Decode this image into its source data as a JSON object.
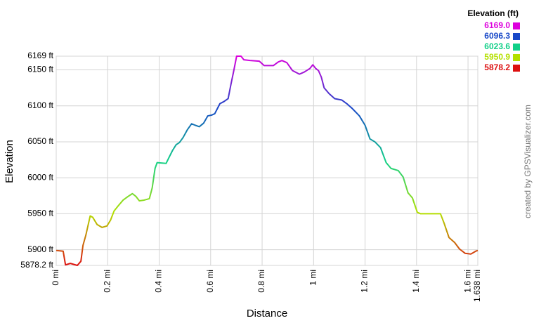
{
  "chart_data": {
    "type": "line",
    "y_label": "Elevation",
    "x_label": "Distance",
    "credit": "created by GPSVisualizer.com",
    "legend": {
      "title": "Elevation (ft)",
      "entries": [
        {
          "value": 6169.0,
          "label": "6169.0",
          "color": "#dd00dd"
        },
        {
          "value": 6096.3,
          "label": "6096.3",
          "color": "#1848c8"
        },
        {
          "value": 6023.6,
          "label": "6023.6",
          "color": "#10d088"
        },
        {
          "value": 5950.9,
          "label": "5950.9",
          "color": "#b4e000"
        },
        {
          "value": 5878.2,
          "label": "5878.2",
          "color": "#dd1010"
        }
      ]
    },
    "xlim": [
      0,
      1.638
    ],
    "ylim": [
      5878.2,
      6169
    ],
    "xticks": [
      {
        "value": 0,
        "label": "0 mi"
      },
      {
        "value": 0.2,
        "label": "0.2 mi"
      },
      {
        "value": 0.4,
        "label": "0.4 mi"
      },
      {
        "value": 0.6,
        "label": "0.6 mi"
      },
      {
        "value": 0.8,
        "label": "0.8 mi"
      },
      {
        "value": 1,
        "label": "1 mi"
      },
      {
        "value": 1.2,
        "label": "1.2 mi"
      },
      {
        "value": 1.4,
        "label": "1.4 mi"
      },
      {
        "value": 1.6,
        "label": "1.6 mi"
      },
      {
        "value": 1.638,
        "label": "1.638 mi"
      }
    ],
    "yticks": [
      {
        "value": 5878.2,
        "label": "5878.2 ft"
      },
      {
        "value": 5900,
        "label": "5900 ft"
      },
      {
        "value": 5950,
        "label": "5950 ft"
      },
      {
        "value": 6000,
        "label": "6000 ft"
      },
      {
        "value": 6050,
        "label": "6050 ft"
      },
      {
        "value": 6100,
        "label": "6100 ft"
      },
      {
        "value": 6150,
        "label": "6150 ft"
      },
      {
        "value": 6169,
        "label": "6169 ft"
      }
    ],
    "grid": true,
    "x": [
      0,
      0.027,
      0.036,
      0.055,
      0.082,
      0.096,
      0.104,
      0.115,
      0.132,
      0.142,
      0.159,
      0.178,
      0.197,
      0.211,
      0.225,
      0.241,
      0.26,
      0.279,
      0.296,
      0.31,
      0.323,
      0.342,
      0.362,
      0.373,
      0.384,
      0.392,
      0.427,
      0.438,
      0.452,
      0.466,
      0.479,
      0.493,
      0.51,
      0.526,
      0.54,
      0.556,
      0.573,
      0.589,
      0.603,
      0.616,
      0.636,
      0.652,
      0.668,
      0.679,
      0.69,
      0.701,
      0.718,
      0.729,
      0.753,
      0.789,
      0.808,
      0.844,
      0.863,
      0.877,
      0.896,
      0.918,
      0.945,
      0.964,
      0.986,
      0.997,
      1.008,
      1.019,
      1.03,
      1.041,
      1.06,
      1.082,
      1.11,
      1.129,
      1.151,
      1.178,
      1.2,
      1.219,
      1.238,
      1.26,
      1.282,
      1.301,
      1.329,
      1.348,
      1.367,
      1.384,
      1.403,
      1.416,
      1.493,
      1.507,
      1.526,
      1.548,
      1.567,
      1.589,
      1.611,
      1.63,
      1.638
    ],
    "values": [
      5899,
      5898,
      5879,
      5881,
      5878.2,
      5884,
      5906,
      5920,
      5947,
      5945,
      5935,
      5931,
      5933,
      5941,
      5954,
      5961,
      5969,
      5974,
      5978,
      5974,
      5968,
      5969,
      5971,
      5986,
      6013,
      6021,
      6020,
      6028,
      6038,
      6046,
      6049,
      6056,
      6067,
      6075,
      6073,
      6071,
      6076,
      6086,
      6087,
      6089,
      6103,
      6106,
      6110,
      6130,
      6149,
      6169,
      6169,
      6164,
      6163,
      6162,
      6156,
      6156,
      6161,
      6163,
      6160,
      6149,
      6144,
      6147,
      6152,
      6157,
      6152,
      6149,
      6140,
      6125,
      6117,
      6110,
      6108,
      6103,
      6096,
      6086,
      6073,
      6054,
      6050,
      6042,
      6021,
      6013,
      6010,
      6001,
      5979,
      5972,
      5952,
      5950,
      5950,
      5937,
      5917,
      5910,
      5901,
      5895,
      5894,
      5898,
      5899
    ]
  }
}
